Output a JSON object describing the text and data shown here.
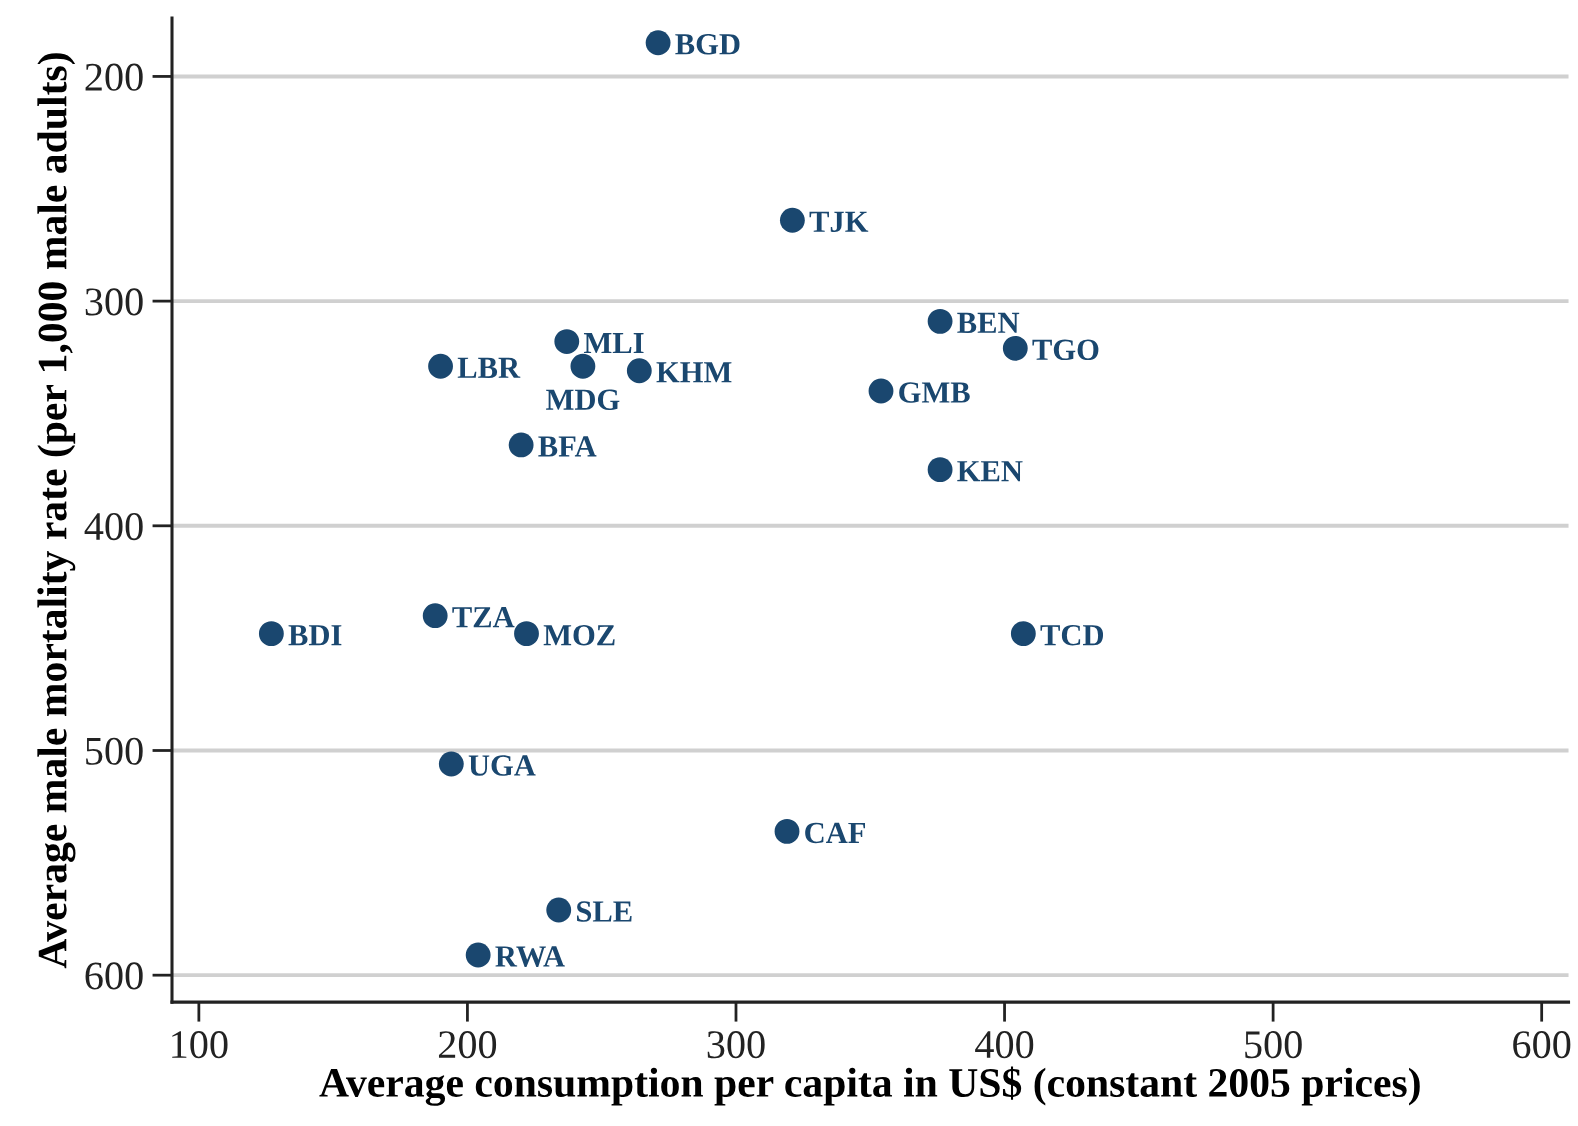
{
  "chart_data": {
    "type": "scatter",
    "xlabel": "Average consumption per capita in US$ (constant 2005 prices)",
    "ylabel": "Average male mortality rate (per 1,000 male adults)",
    "xlim": [
      90,
      610
    ],
    "ylim": [
      612,
      174
    ],
    "xticks": [
      100,
      200,
      300,
      400,
      500,
      600
    ],
    "yticks": [
      200,
      300,
      400,
      500,
      600
    ],
    "grid": "y",
    "marker": "circle",
    "series": [
      {
        "color": "#1a476f",
        "x": [
          271,
          321,
          237,
          190,
          243,
          264,
          220,
          376,
          404,
          354,
          376,
          127,
          188,
          222,
          194,
          319,
          234,
          204,
          407
        ],
        "values": [
          185,
          264,
          318,
          329,
          329,
          331,
          364,
          309,
          321,
          340,
          375,
          448,
          440,
          448,
          506,
          536,
          571,
          591,
          448
        ]
      }
    ],
    "annotations": [
      {
        "text": "BGD",
        "x": 271,
        "y": 185
      },
      {
        "text": "TJK",
        "x": 321,
        "y": 264
      },
      {
        "text": "MLI",
        "x": 237,
        "y": 318
      },
      {
        "text": "LBR",
        "x": 190,
        "y": 329
      },
      {
        "text": "MDG",
        "x": 243,
        "y": 329
      },
      {
        "text": "KHM",
        "x": 264,
        "y": 331
      },
      {
        "text": "BFA",
        "x": 220,
        "y": 364
      },
      {
        "text": "BEN",
        "x": 376,
        "y": 309
      },
      {
        "text": "TGO",
        "x": 404,
        "y": 321
      },
      {
        "text": "GMB",
        "x": 354,
        "y": 340
      },
      {
        "text": "KEN",
        "x": 376,
        "y": 375
      },
      {
        "text": "BDI",
        "x": 127,
        "y": 448
      },
      {
        "text": "TZA",
        "x": 188,
        "y": 440
      },
      {
        "text": "MOZ",
        "x": 222,
        "y": 448
      },
      {
        "text": "UGA",
        "x": 194,
        "y": 506
      },
      {
        "text": "CAF",
        "x": 319,
        "y": 536
      },
      {
        "text": "SLE",
        "x": 234,
        "y": 571
      },
      {
        "text": "RWA",
        "x": 204,
        "y": 591
      },
      {
        "text": "TCD",
        "x": 407,
        "y": 448
      }
    ]
  }
}
